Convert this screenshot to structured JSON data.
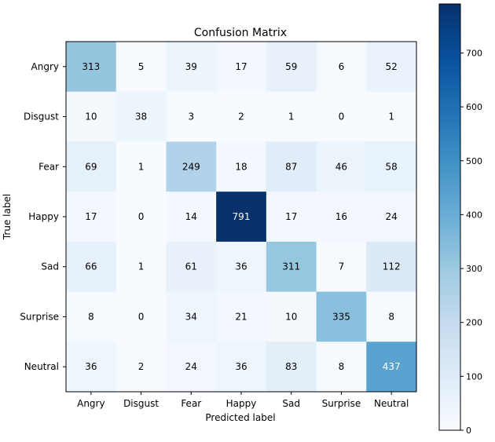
{
  "chart_data": {
    "type": "heatmap",
    "title": "Confusion Matrix",
    "xlabel": "Predicted label",
    "ylabel": "True label",
    "x_categories": [
      "Angry",
      "Disgust",
      "Fear",
      "Happy",
      "Sad",
      "Surprise",
      "Neutral"
    ],
    "y_categories": [
      "Angry",
      "Disgust",
      "Fear",
      "Happy",
      "Sad",
      "Surprise",
      "Neutral"
    ],
    "values": [
      [
        313,
        5,
        39,
        17,
        59,
        6,
        52
      ],
      [
        10,
        38,
        3,
        2,
        1,
        0,
        1
      ],
      [
        69,
        1,
        249,
        18,
        87,
        46,
        58
      ],
      [
        17,
        0,
        14,
        791,
        17,
        16,
        24
      ],
      [
        66,
        1,
        61,
        36,
        311,
        7,
        112
      ],
      [
        8,
        0,
        34,
        21,
        10,
        335,
        8
      ],
      [
        36,
        2,
        24,
        36,
        83,
        8,
        437
      ]
    ],
    "colormap": "Blues",
    "color_range": [
      0,
      791
    ],
    "colorbar_ticks": [
      0,
      100,
      200,
      300,
      400,
      500,
      600,
      700
    ],
    "grid": false
  }
}
